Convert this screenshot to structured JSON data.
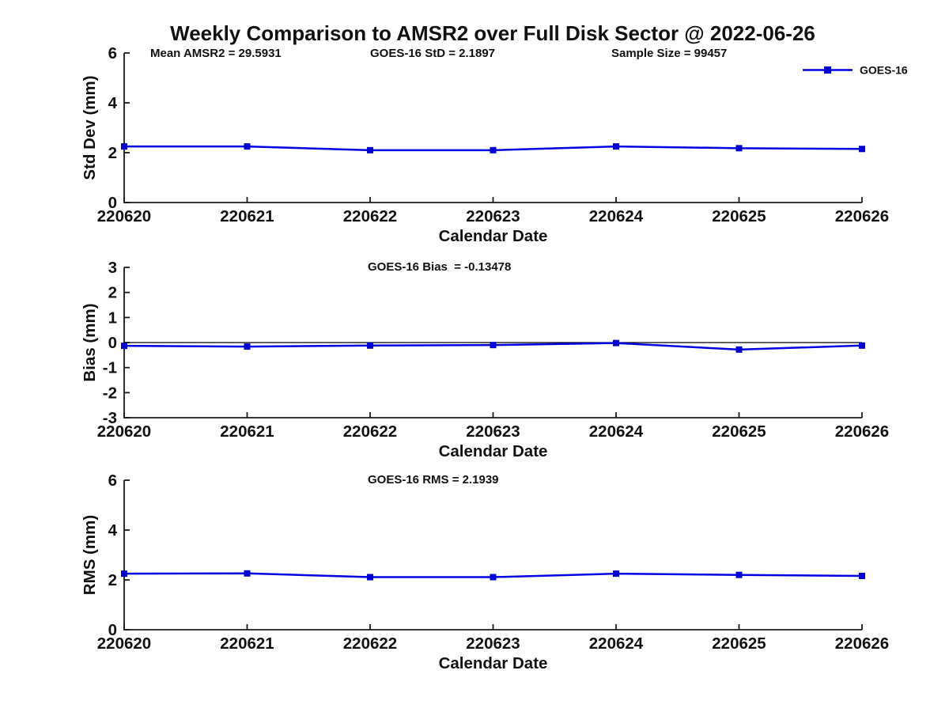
{
  "title": "Weekly Comparison to AMSR2 over Full Disk Sector @ 2022-06-26",
  "legend": {
    "label": "GOES-16"
  },
  "colors": {
    "line": "#0000e0",
    "marker": "#0000d6",
    "axis": "#1a1a1a",
    "text": "#111111",
    "zero_line": "#000000"
  },
  "chart_data": [
    {
      "type": "line",
      "panel": "std-dev",
      "annotations": [
        "Mean AMSR2 = 29.5931",
        "GOES-16 StD = 2.1897",
        "Sample Size = 99457"
      ],
      "categories": [
        "220620",
        "220621",
        "220622",
        "220623",
        "220624",
        "220625",
        "220626"
      ],
      "series": [
        {
          "name": "GOES-16",
          "values": [
            2.25,
            2.25,
            2.1,
            2.1,
            2.25,
            2.18,
            2.15
          ]
        }
      ],
      "xlabel": "Calendar Date",
      "ylabel": "Std Dev (mm)",
      "ylim": [
        0,
        6
      ],
      "yticks": [
        0,
        2,
        4,
        6
      ],
      "zero_line": false,
      "legend_visible": true,
      "grid": false
    },
    {
      "type": "line",
      "panel": "bias",
      "annotations": [
        "GOES-16 Bias  = -0.13478"
      ],
      "categories": [
        "220620",
        "220621",
        "220622",
        "220623",
        "220624",
        "220625",
        "220626"
      ],
      "series": [
        {
          "name": "GOES-16",
          "values": [
            -0.13,
            -0.16,
            -0.12,
            -0.1,
            -0.02,
            -0.28,
            -0.12
          ]
        }
      ],
      "xlabel": "Calendar Date",
      "ylabel": "Bias (mm)",
      "ylim": [
        -3,
        3
      ],
      "yticks": [
        -3,
        -2,
        -1,
        0,
        1,
        2,
        3
      ],
      "zero_line": true,
      "legend_visible": false,
      "grid": false
    },
    {
      "type": "line",
      "panel": "rms",
      "annotations": [
        "GOES-16 RMS = 2.1939"
      ],
      "categories": [
        "220620",
        "220621",
        "220622",
        "220623",
        "220624",
        "220625",
        "220626"
      ],
      "series": [
        {
          "name": "GOES-16",
          "values": [
            2.25,
            2.26,
            2.11,
            2.11,
            2.25,
            2.2,
            2.16
          ]
        }
      ],
      "xlabel": "Calendar Date",
      "ylabel": "RMS (mm)",
      "ylim": [
        0,
        6
      ],
      "yticks": [
        0,
        2,
        4,
        6
      ],
      "zero_line": true,
      "legend_visible": false,
      "grid": false
    }
  ]
}
